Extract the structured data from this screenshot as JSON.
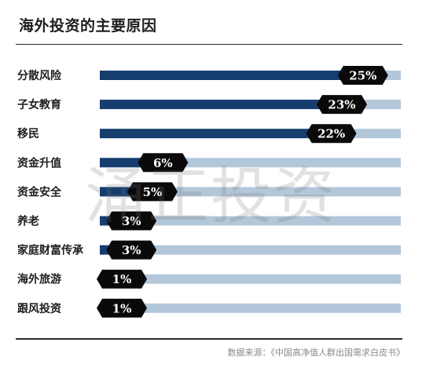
{
  "title": "海外投资的主要原因",
  "source": "数据来源：《中国高净值人群出国需求白皮书》",
  "watermark": "涌正投资",
  "colors": {
    "bar_fill": "#153e6e",
    "bar_track": "#b3c7da",
    "value_tag": "#0a0a0a"
  },
  "chart_data": {
    "type": "bar",
    "orientation": "horizontal",
    "title": "海外投资的主要原因",
    "categories": [
      "分散风险",
      "子女教育",
      "移民",
      "资金升值",
      "资金安全",
      "养老",
      "家庭财富传承",
      "海外旅游",
      "跟风投资"
    ],
    "values": [
      25,
      23,
      22,
      6,
      5,
      3,
      3,
      1,
      1
    ],
    "value_labels": [
      "25%",
      "23%",
      "22%",
      "6%",
      "5%",
      "3%",
      "3%",
      "1%",
      "1%"
    ],
    "unit": "%",
    "xlim": [
      0,
      28.6
    ],
    "grid": false,
    "legend": "none"
  }
}
